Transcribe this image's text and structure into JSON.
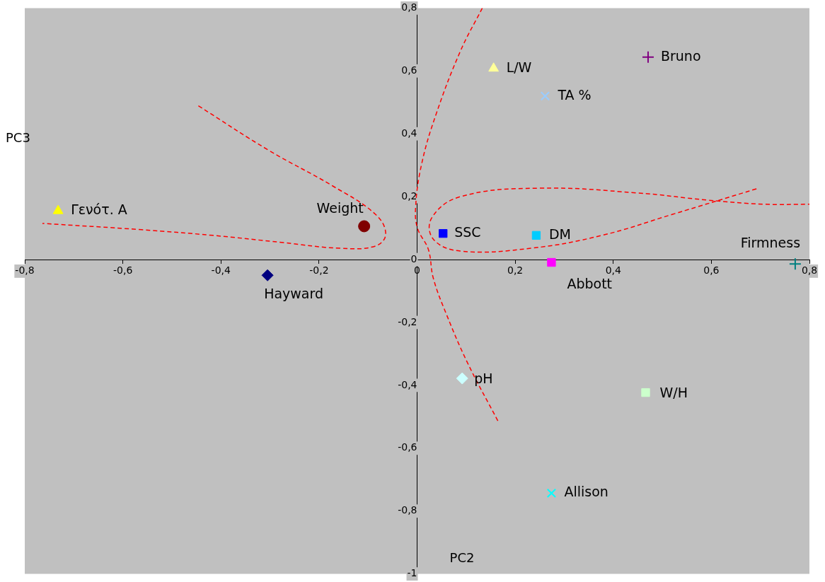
{
  "chart_data": {
    "type": "scatter",
    "xlabel": "PC2",
    "ylabel": "PC3",
    "xlim": [
      -0.8,
      0.8
    ],
    "ylim": [
      -1,
      0.8
    ],
    "xticks": [
      {
        "value": -0.8,
        "label": "-0,8"
      },
      {
        "value": -0.6,
        "label": "-0,6"
      },
      {
        "value": -0.4,
        "label": "-0,4"
      },
      {
        "value": -0.2,
        "label": "-0,2"
      },
      0,
      {
        "value": 0.2,
        "label": "0,2"
      },
      {
        "value": 0.4,
        "label": "0,4"
      },
      {
        "value": 0.6,
        "label": "0,6"
      },
      {
        "value": 0.8,
        "label": "0,8"
      }
    ],
    "yticks": [
      -1,
      {
        "value": -0.8,
        "label": "-0,8"
      },
      {
        "value": -0.6,
        "label": "-0,6"
      },
      {
        "value": -0.4,
        "label": "-0,4"
      },
      {
        "value": -0.2,
        "label": "-0,2"
      },
      0,
      {
        "value": 0.2,
        "label": "0,2"
      },
      {
        "value": 0.4,
        "label": "0,4"
      },
      {
        "value": 0.6,
        "label": "0,6"
      },
      {
        "value": 0.8,
        "label": "0,8"
      }
    ],
    "grid": false,
    "legend": false,
    "series": [
      {
        "name": "Γενότ. Α",
        "color": "#ffff00",
        "marker": "triangle",
        "x": [
          -0.732
        ],
        "values": [
          0.155
        ]
      },
      {
        "name": "Weight",
        "color": "#800000",
        "marker": "circle",
        "x": [
          -0.108
        ],
        "values": [
          0.106
        ]
      },
      {
        "name": "Hayward",
        "color": "#000080",
        "marker": "diamond",
        "x": [
          -0.305
        ],
        "values": [
          -0.05
        ]
      },
      {
        "name": "SSC",
        "color": "#0000ff",
        "marker": "square",
        "x": [
          0.053
        ],
        "values": [
          0.083
        ]
      },
      {
        "name": "DM",
        "color": "#00ccff",
        "marker": "square",
        "x": [
          0.243
        ],
        "values": [
          0.077
        ]
      },
      {
        "name": "Abbott",
        "color": "#ff00ff",
        "marker": "square",
        "x": [
          0.274
        ],
        "values": [
          -0.009
        ]
      },
      {
        "name": "Firmness",
        "color": "#008080",
        "marker": "cross",
        "x": [
          0.771
        ],
        "values": [
          -0.014
        ]
      },
      {
        "name": "L/W",
        "color": "#ffff99",
        "marker": "triangle",
        "x": [
          0.156
        ],
        "values": [
          0.608
        ]
      },
      {
        "name": "TA %",
        "color": "#99ccff",
        "marker": "x",
        "x": [
          0.261
        ],
        "values": [
          0.52
        ]
      },
      {
        "name": "Bruno",
        "color": "#800080",
        "marker": "cross",
        "x": [
          0.471
        ],
        "values": [
          0.644
        ]
      },
      {
        "name": "pH",
        "color": "#ccffff",
        "marker": "diamond",
        "x": [
          0.092
        ],
        "values": [
          -0.378
        ]
      },
      {
        "name": "W/H",
        "color": "#ccffcc",
        "marker": "square",
        "x": [
          0.466
        ],
        "values": [
          -0.423
        ]
      },
      {
        "name": "Allison",
        "color": "#00ffff",
        "marker": "x",
        "x": [
          0.274
        ],
        "values": [
          -0.743
        ]
      },
      {
        "type": "line",
        "color": "#ff0000",
        "line_style": "dashed",
        "marker": "none",
        "x": [
          -0.446,
          -0.302,
          -0.172,
          -0.085,
          -0.064,
          -0.085,
          -0.157,
          -0.273,
          -0.417,
          -0.562,
          -0.764
        ],
        "values": [
          0.489,
          0.347,
          0.234,
          0.144,
          0.081,
          0.043,
          0.036,
          0.054,
          0.077,
          0.095,
          0.115
        ]
      },
      {
        "type": "line",
        "color": "#ff0000",
        "line_style": "dashed",
        "marker": "none",
        "x": [
          0.133,
          0.088,
          0.038,
          0.009,
          -0.003,
          0.001,
          0.023,
          0.033,
          0.059,
          0.103,
          0.165
        ],
        "values": [
          0.8,
          0.662,
          0.459,
          0.302,
          0.167,
          0.099,
          0.032,
          -0.059,
          -0.171,
          -0.329,
          -0.514
        ]
      },
      {
        "type": "line",
        "color": "#ff0000",
        "line_style": "dashed",
        "marker": "none",
        "x": [
          0.692,
          0.521,
          0.377,
          0.232,
          0.088,
          0.033,
          0.03,
          0.088,
          0.247,
          0.449,
          0.593,
          0.709,
          0.8
        ],
        "values": [
          0.225,
          0.144,
          0.077,
          0.036,
          0.027,
          0.065,
          0.133,
          0.2,
          0.227,
          0.212,
          0.189,
          0.176,
          0.176
        ]
      }
    ]
  }
}
